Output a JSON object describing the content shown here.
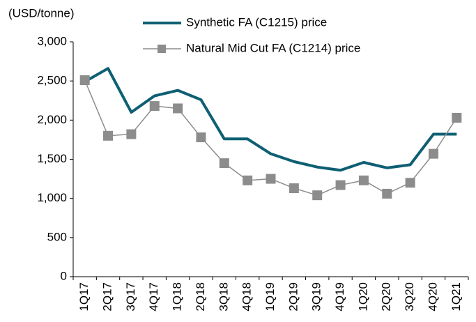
{
  "chart_data": {
    "type": "line",
    "y_axis_label": "(USD/tonne)",
    "categories": [
      "1Q17",
      "2Q17",
      "3Q17",
      "4Q17",
      "1Q18",
      "2Q18",
      "3Q18",
      "4Q18",
      "1Q19",
      "2Q19",
      "3Q19",
      "4Q19",
      "1Q20",
      "2Q20",
      "3Q20",
      "4Q20",
      "1Q21"
    ],
    "series": [
      {
        "name": "Synthetic FA (C1215) price",
        "color": "#0e5f73",
        "marker": "none",
        "values": [
          2490,
          2660,
          2100,
          2310,
          2380,
          2260,
          1760,
          1760,
          1570,
          1470,
          1400,
          1360,
          1460,
          1390,
          1430,
          1820,
          1820
        ]
      },
      {
        "name": "Natural Mid Cut FA (C1214) price",
        "color": "#8c8c8c",
        "marker": "square",
        "values": [
          2510,
          1800,
          1820,
          2180,
          2150,
          1780,
          1450,
          1230,
          1250,
          1130,
          1040,
          1170,
          1230,
          1060,
          1200,
          1570,
          2030
        ]
      }
    ],
    "ylim": [
      0,
      3000
    ],
    "yticks": [
      0,
      500,
      {
        "value": 1000,
        "label": "1,000"
      },
      {
        "value": 1500,
        "label": "1,500"
      },
      {
        "value": 2000,
        "label": "2,000"
      },
      {
        "value": 2500,
        "label": "2,500"
      },
      {
        "value": 3000,
        "label": "3,000"
      }
    ],
    "grid": false
  }
}
